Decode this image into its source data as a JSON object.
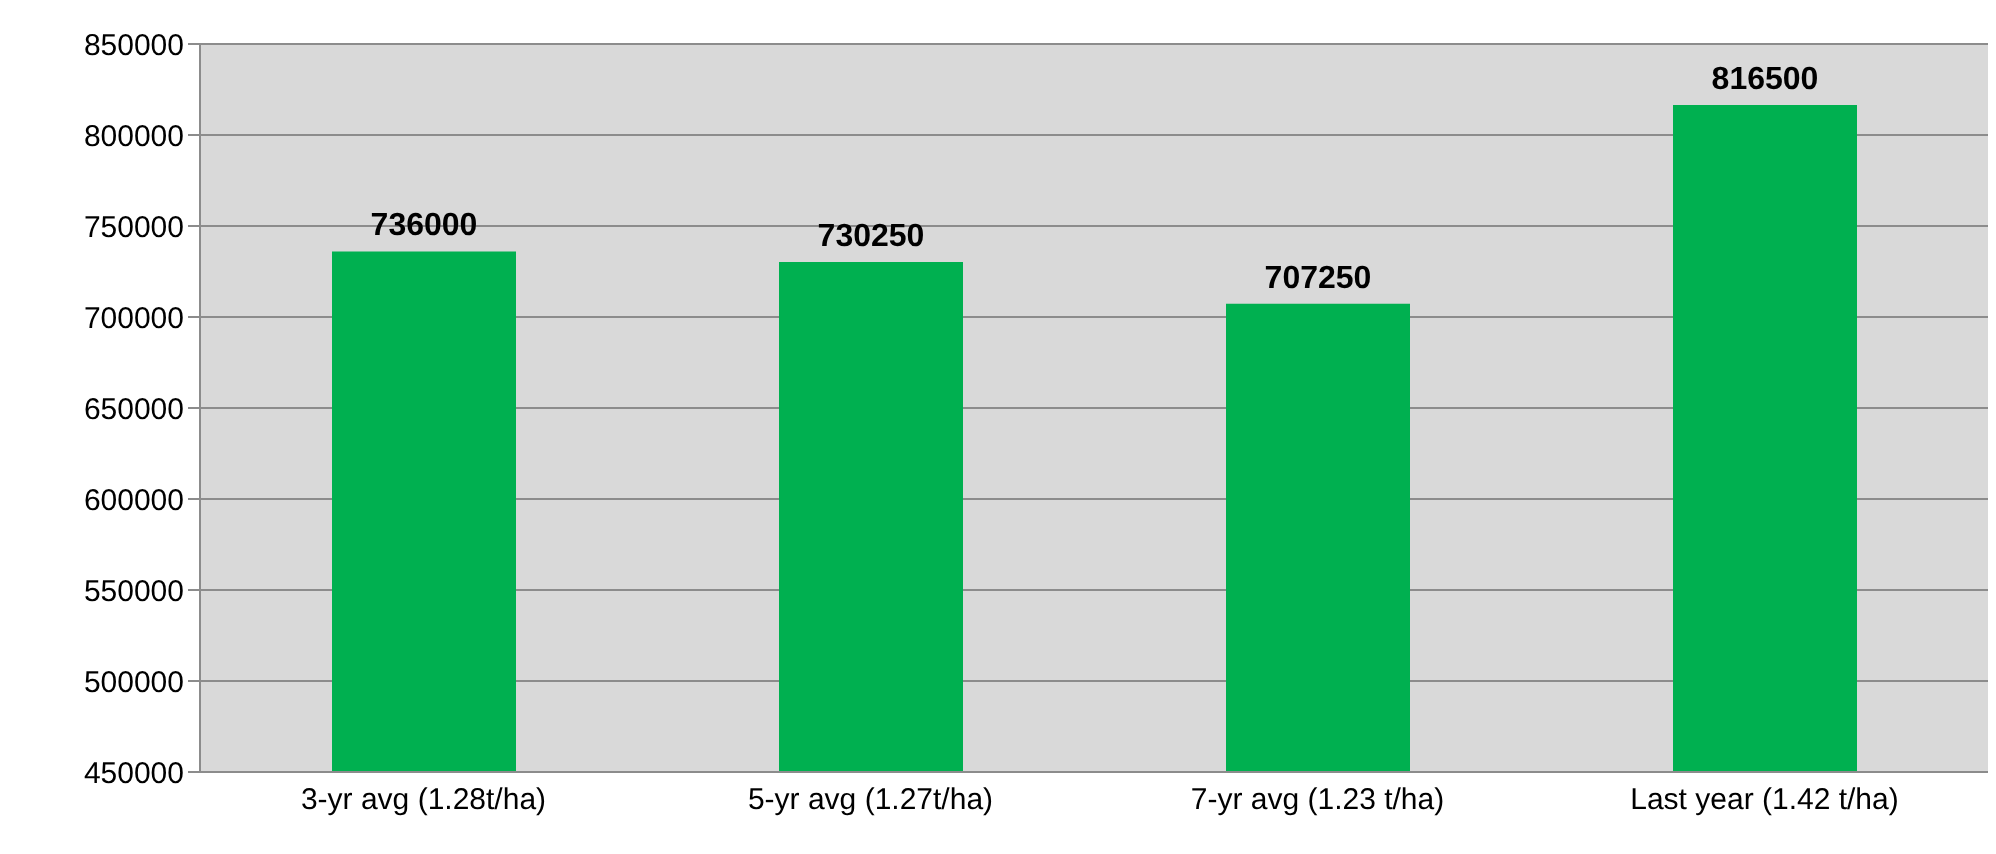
{
  "chart_data": {
    "type": "bar",
    "categories": [
      "3-yr avg (1.28t/ha)",
      "5-yr avg (1.27t/ha)",
      "7-yr avg (1.23 t/ha)",
      "Last year (1.42 t/ha)"
    ],
    "values": [
      736000,
      730250,
      707250,
      816500
    ],
    "color": "#00b050",
    "ylim": [
      450000,
      850000
    ],
    "yticks": [
      450000,
      500000,
      550000,
      600000,
      650000,
      700000,
      750000,
      800000,
      850000
    ],
    "grid": "y",
    "data_labels": true,
    "legend": false
  }
}
